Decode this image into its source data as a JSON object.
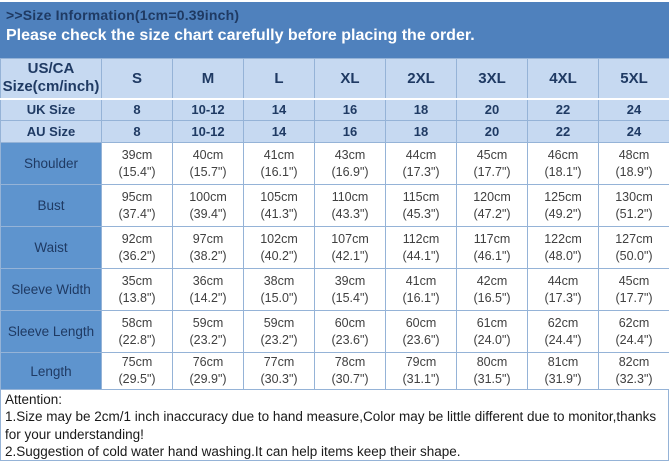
{
  "page": {
    "title": ">>Size Information(1cm=0.39inch)",
    "banner": "Please check the size chart carefully before placing the order."
  },
  "colors": {
    "banner_bg": "#4f81bd",
    "navy_text": "#1f3a63",
    "header_bg": "#c6d9f1",
    "label_bg": "#5e94ce",
    "cell_text": "#404040",
    "grid_border": "#95b3d7"
  },
  "table": {
    "corner_header_line1": "US/CA",
    "corner_header_line2": "Size(cm/inch)",
    "size_columns": [
      "S",
      "M",
      "L",
      "XL",
      "2XL",
      "3XL",
      "4XL",
      "5XL"
    ],
    "region_rows": [
      {
        "label": "UK Size",
        "values": [
          "8",
          "10-12",
          "14",
          "16",
          "18",
          "20",
          "22",
          "24"
        ]
      },
      {
        "label": "AU Size",
        "values": [
          "8",
          "10-12",
          "14",
          "16",
          "18",
          "20",
          "22",
          "24"
        ]
      }
    ],
    "measurement_rows": [
      {
        "label": "Shoulder",
        "cm": [
          "39cm",
          "40cm",
          "41cm",
          "43cm",
          "44cm",
          "45cm",
          "46cm",
          "48cm"
        ],
        "inch": [
          "(15.4\")",
          "(15.7\")",
          "(16.1\")",
          "(16.9\")",
          "(17.3\")",
          "(17.7\")",
          "(18.1\")",
          "(18.9\")"
        ]
      },
      {
        "label": "Bust",
        "cm": [
          "95cm",
          "100cm",
          "105cm",
          "110cm",
          "115cm",
          "120cm",
          "125cm",
          "130cm"
        ],
        "inch": [
          "(37.4\")",
          "(39.4\")",
          "(41.3\")",
          "(43.3\")",
          "(45.3\")",
          "(47.2\")",
          "(49.2\")",
          "(51.2\")"
        ]
      },
      {
        "label": "Waist",
        "cm": [
          "92cm",
          "97cm",
          "102cm",
          "107cm",
          "112cm",
          "117cm",
          "122cm",
          "127cm"
        ],
        "inch": [
          "(36.2\")",
          "(38.2\")",
          "(40.2\")",
          "(42.1\")",
          "(44.1\")",
          "(46.1\")",
          "(48.0\")",
          "(50.0\")"
        ]
      },
      {
        "label": "Sleeve Width",
        "cm": [
          "35cm",
          "36cm",
          "38cm",
          "39cm",
          "41cm",
          "42cm",
          "44cm",
          "45cm"
        ],
        "inch": [
          "(13.8\")",
          "(14.2\")",
          "(15.0\")",
          "(15.4\")",
          "(16.1\")",
          "(16.5\")",
          "(17.3\")",
          "(17.7\")"
        ]
      },
      {
        "label": "Sleeve Length",
        "cm": [
          "58cm",
          "59cm",
          "59cm",
          "60cm",
          "60cm",
          "61cm",
          "62cm",
          "62cm"
        ],
        "inch": [
          "(22.8\")",
          "(23.2\")",
          "(23.2\")",
          "(23.6\")",
          "(23.6\")",
          "(24.0\")",
          "(24.4\")",
          "(24.4\")"
        ]
      },
      {
        "label": "Length",
        "cm": [
          "75cm",
          "76cm",
          "77cm",
          "78cm",
          "79cm",
          "80cm",
          "81cm",
          "82cm"
        ],
        "inch": [
          "(29.5\")",
          "(29.9\")",
          "(30.3\")",
          "(30.7\")",
          "(31.1\")",
          "(31.5\")",
          "(31.9\")",
          "(32.3\")"
        ]
      }
    ]
  },
  "attention": {
    "heading": "Attention:",
    "lines": [
      "1.Size may be 2cm/1 inch inaccuracy due to hand measure,Color may be little different due to monitor,thanks for your understanding!",
      "2.Suggestion of cold water hand washing.It can help items keep their shape."
    ]
  },
  "chart_data": {
    "type": "table",
    "title": ">>Size Information(1cm=0.39inch)",
    "subtitle": "Please check the size chart carefully before placing the order.",
    "columns": [
      "US/CA Size(cm/inch)",
      "S",
      "M",
      "L",
      "XL",
      "2XL",
      "3XL",
      "4XL",
      "5XL"
    ],
    "rows": [
      [
        "UK Size",
        "8",
        "10-12",
        "14",
        "16",
        "18",
        "20",
        "22",
        "24"
      ],
      [
        "AU Size",
        "8",
        "10-12",
        "14",
        "16",
        "18",
        "20",
        "22",
        "24"
      ],
      [
        "Shoulder",
        "39cm (15.4\")",
        "40cm (15.7\")",
        "41cm (16.1\")",
        "43cm (16.9\")",
        "44cm (17.3\")",
        "45cm (17.7\")",
        "46cm (18.1\")",
        "48cm (18.9\")"
      ],
      [
        "Bust",
        "95cm (37.4\")",
        "100cm (39.4\")",
        "105cm (41.3\")",
        "110cm (43.3\")",
        "115cm (45.3\")",
        "120cm (47.2\")",
        "125cm (49.2\")",
        "130cm (51.2\")"
      ],
      [
        "Waist",
        "92cm (36.2\")",
        "97cm (38.2\")",
        "102cm (40.2\")",
        "107cm (42.1\")",
        "112cm (44.1\")",
        "117cm (46.1\")",
        "122cm (48.0\")",
        "127cm (50.0\")"
      ],
      [
        "Sleeve Width",
        "35cm (13.8\")",
        "36cm (14.2\")",
        "38cm (15.0\")",
        "39cm (15.4\")",
        "41cm (16.1\")",
        "42cm (16.5\")",
        "44cm (17.3\")",
        "45cm (17.7\")"
      ],
      [
        "Sleeve Length",
        "58cm (22.8\")",
        "59cm (23.2\")",
        "59cm (23.2\")",
        "60cm (23.6\")",
        "60cm (23.6\")",
        "61cm (24.0\")",
        "62cm (24.4\")",
        "62cm (24.4\")"
      ],
      [
        "Length",
        "75cm (29.5\")",
        "76cm (29.9\")",
        "77cm (30.3\")",
        "78cm (30.7\")",
        "79cm (31.1\")",
        "80cm (31.5\")",
        "81cm (31.9\")",
        "82cm (32.3\")"
      ]
    ]
  }
}
